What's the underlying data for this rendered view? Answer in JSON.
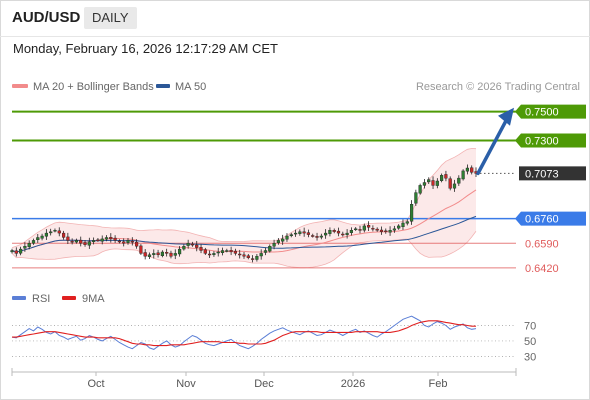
{
  "header": {
    "symbol": "AUD/USD",
    "timeframe": "DAILY",
    "timestamp": "Monday, February 16, 2026 12:17:29 AM CET"
  },
  "chart_data": [
    {
      "type": "candlestick",
      "title": "AUD/USD",
      "legend": [
        {
          "name": "MA 20 + Bollinger Bands",
          "color": "#f28b8b"
        },
        {
          "name": "MA 50",
          "color": "#2b5797"
        }
      ],
      "source": "Research © 2026 Trading Central",
      "x_ticks": [
        "Oct",
        "Nov",
        "Dec",
        "2026",
        "Feb"
      ],
      "ylim": [
        0.635,
        0.758
      ],
      "levels": [
        {
          "value": 0.75,
          "label": "0.7500",
          "color": "#4e9a06",
          "kind": "target"
        },
        {
          "value": 0.73,
          "label": "0.7300",
          "color": "#4e9a06",
          "kind": "target"
        },
        {
          "value": 0.7073,
          "label": "0.7073",
          "color": "#333333",
          "kind": "last"
        },
        {
          "value": 0.676,
          "label": "0.6760",
          "color": "#3a7be8",
          "kind": "pivot"
        },
        {
          "value": 0.659,
          "label": "0.6590",
          "color": "#e05c5c",
          "kind": "support"
        },
        {
          "value": 0.642,
          "label": "0.6420",
          "color": "#e05c5c",
          "kind": "support"
        }
      ],
      "arrow": {
        "from": 0.7073,
        "to": 0.7485,
        "color": "#2b5fa8"
      },
      "ohlc_close": [
        0.654,
        0.652,
        0.655,
        0.657,
        0.659,
        0.661,
        0.663,
        0.664,
        0.666,
        0.667,
        0.668,
        0.666,
        0.663,
        0.661,
        0.66,
        0.661,
        0.659,
        0.658,
        0.66,
        0.661,
        0.661,
        0.662,
        0.663,
        0.662,
        0.661,
        0.66,
        0.659,
        0.661,
        0.66,
        0.657,
        0.652,
        0.65,
        0.651,
        0.652,
        0.651,
        0.653,
        0.652,
        0.65,
        0.652,
        0.655,
        0.657,
        0.659,
        0.658,
        0.656,
        0.654,
        0.652,
        0.651,
        0.652,
        0.653,
        0.654,
        0.654,
        0.653,
        0.652,
        0.651,
        0.65,
        0.649,
        0.648,
        0.65,
        0.652,
        0.654,
        0.657,
        0.659,
        0.661,
        0.662,
        0.664,
        0.665,
        0.666,
        0.667,
        0.666,
        0.665,
        0.664,
        0.663,
        0.664,
        0.666,
        0.668,
        0.667,
        0.666,
        0.665,
        0.666,
        0.668,
        0.669,
        0.668,
        0.671,
        0.67,
        0.669,
        0.668,
        0.667,
        0.667,
        0.668,
        0.669,
        0.671,
        0.673,
        0.674,
        0.686,
        0.694,
        0.699,
        0.701,
        0.703,
        0.699,
        0.702,
        0.706,
        0.704,
        0.697,
        0.7,
        0.704,
        0.709,
        0.711,
        0.708,
        0.7073
      ],
      "rsi": {
        "ticks": [
          70,
          50,
          30
        ],
        "legend": [
          {
            "name": "RSI",
            "color": "#5b7fd6"
          },
          {
            "name": "9MA",
            "color": "#e02020"
          }
        ],
        "values": [
          55,
          54,
          58,
          62,
          66,
          63,
          68,
          65,
          61,
          59,
          62,
          57,
          55,
          52,
          54,
          56,
          51,
          53,
          57,
          55,
          52,
          50,
          53,
          56,
          52,
          48,
          45,
          42,
          40,
          44,
          48,
          46,
          41,
          39,
          43,
          47,
          50,
          45,
          42,
          44,
          49,
          53,
          57,
          55,
          51,
          47,
          45,
          44,
          46,
          48,
          50,
          52,
          48,
          44,
          42,
          40,
          43,
          47,
          52,
          56,
          60,
          63,
          65,
          67,
          64,
          62,
          60,
          58,
          61,
          63,
          60,
          57,
          58,
          61,
          64,
          62,
          60,
          57,
          60,
          63,
          65,
          61,
          63,
          60,
          57,
          55,
          59,
          62,
          66,
          70,
          74,
          78,
          80,
          82,
          79,
          76,
          70,
          68,
          72,
          75,
          73,
          70,
          65,
          68,
          70,
          72,
          67,
          65,
          66
        ],
        "ma9": [
          55,
          55,
          56,
          57,
          58,
          59,
          60,
          61,
          62,
          62,
          62,
          61,
          60,
          59,
          58,
          57,
          56,
          55,
          55,
          55,
          54,
          54,
          54,
          54,
          54,
          53,
          51,
          49,
          47,
          46,
          46,
          45,
          45,
          44,
          44,
          44,
          44,
          45,
          45,
          45,
          45,
          46,
          47,
          48,
          49,
          49,
          49,
          49,
          49,
          48,
          48,
          48,
          48,
          47,
          47,
          46,
          46,
          46,
          46,
          47,
          49,
          51,
          54,
          57,
          59,
          61,
          62,
          62,
          62,
          62,
          62,
          62,
          61,
          61,
          61,
          61,
          61,
          61,
          61,
          61,
          62,
          62,
          62,
          62,
          62,
          62,
          61,
          61,
          61,
          62,
          63,
          65,
          67,
          70,
          72,
          74,
          75,
          76,
          76,
          76,
          75,
          74,
          73,
          72,
          71,
          71,
          70,
          69,
          69
        ]
      }
    }
  ]
}
